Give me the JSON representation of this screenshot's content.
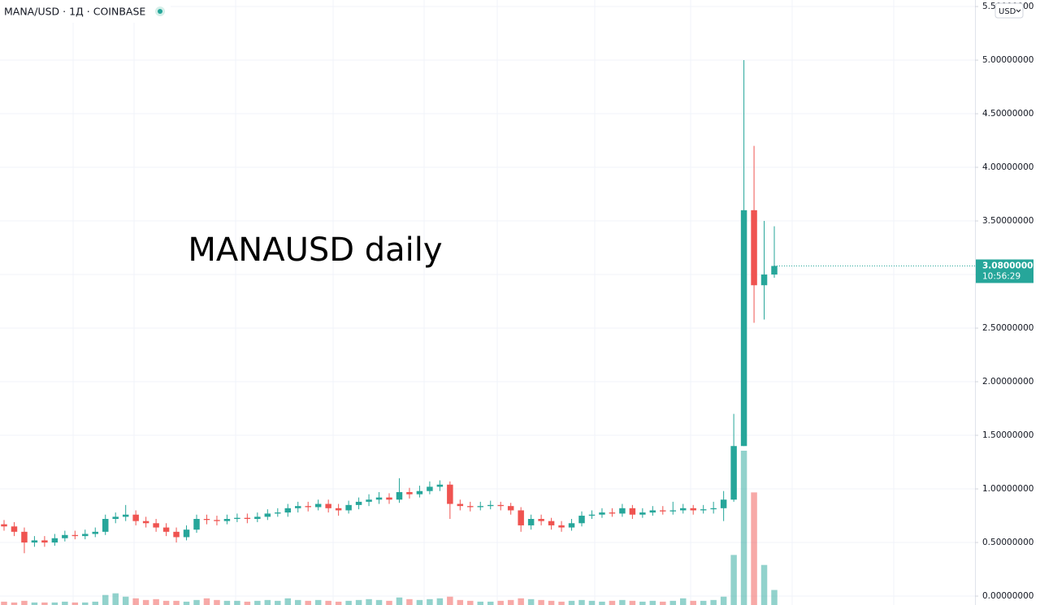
{
  "chart_data": {
    "type": "candlestick",
    "title": "MANA/USD · 1Д · COINBASE",
    "annotation": "MANAUSD daily",
    "currency": "USD",
    "up_color": "#26a69a",
    "down_color": "#ef5350",
    "grid": true,
    "ylim": [
      -0.083,
      5.561
    ],
    "yticks": [
      {
        "value": 0,
        "label": "0.00000000"
      },
      {
        "value": 0.5,
        "label": "0.50000000"
      },
      {
        "value": 1,
        "label": "1.00000000"
      },
      {
        "value": 1.5,
        "label": "1.50000000"
      },
      {
        "value": 2,
        "label": "2.00000000"
      },
      {
        "value": 2.5,
        "label": "2.50000000"
      },
      {
        "value": 3,
        "label": "3.00000000"
      },
      {
        "value": 3.5,
        "label": "3.50000000"
      },
      {
        "value": 4,
        "label": "4.00000000"
      },
      {
        "value": 4.5,
        "label": "4.50000000"
      },
      {
        "value": 5,
        "label": "5.00000000"
      },
      {
        "value": 5.5,
        "label": "5.50000000"
      }
    ],
    "last_price": {
      "value": 3.08,
      "label": "3.08000000"
    },
    "countdown": "10:56:29",
    "open": [
      0.67,
      0.65,
      0.6,
      0.5,
      0.52,
      0.5,
      0.54,
      0.57,
      0.56,
      0.58,
      0.6,
      0.72,
      0.74,
      0.76,
      0.7,
      0.68,
      0.64,
      0.6,
      0.55,
      0.62,
      0.72,
      0.71,
      0.7,
      0.72,
      0.73,
      0.72,
      0.74,
      0.77,
      0.78,
      0.82,
      0.84,
      0.83,
      0.86,
      0.82,
      0.8,
      0.85,
      0.88,
      0.9,
      0.92,
      0.9,
      0.97,
      0.95,
      0.98,
      1.02,
      1.04,
      0.86,
      0.84,
      0.83,
      0.84,
      0.85,
      0.84,
      0.8,
      0.66,
      0.72,
      0.7,
      0.66,
      0.64,
      0.68,
      0.75,
      0.76,
      0.78,
      0.77,
      0.82,
      0.76,
      0.78,
      0.8,
      0.79,
      0.8,
      0.82,
      0.8,
      0.81,
      0.82,
      0.9,
      1.4,
      3.6,
      2.9,
      3.0
    ],
    "high": [
      0.71,
      0.69,
      0.64,
      0.56,
      0.56,
      0.58,
      0.61,
      0.61,
      0.62,
      0.64,
      0.76,
      0.78,
      0.85,
      0.8,
      0.74,
      0.72,
      0.68,
      0.64,
      0.66,
      0.76,
      0.76,
      0.75,
      0.76,
      0.77,
      0.77,
      0.78,
      0.81,
      0.82,
      0.86,
      0.88,
      0.88,
      0.9,
      0.9,
      0.86,
      0.89,
      0.92,
      0.95,
      0.97,
      0.96,
      1.1,
      1.01,
      1.03,
      1.07,
      1.08,
      1.07,
      0.9,
      0.88,
      0.88,
      0.89,
      0.88,
      0.87,
      0.83,
      0.76,
      0.76,
      0.73,
      0.7,
      0.72,
      0.79,
      0.8,
      0.82,
      0.82,
      0.86,
      0.85,
      0.82,
      0.84,
      0.84,
      0.88,
      0.86,
      0.85,
      0.85,
      0.88,
      0.98,
      1.7,
      5.0,
      4.2,
      3.5,
      3.45
    ],
    "low": [
      0.61,
      0.56,
      0.4,
      0.46,
      0.46,
      0.47,
      0.51,
      0.53,
      0.53,
      0.55,
      0.57,
      0.68,
      0.7,
      0.66,
      0.64,
      0.6,
      0.56,
      0.5,
      0.52,
      0.59,
      0.67,
      0.66,
      0.67,
      0.69,
      0.68,
      0.69,
      0.71,
      0.74,
      0.74,
      0.78,
      0.79,
      0.8,
      0.78,
      0.75,
      0.77,
      0.81,
      0.84,
      0.86,
      0.86,
      0.87,
      0.91,
      0.92,
      0.95,
      0.98,
      0.72,
      0.8,
      0.79,
      0.8,
      0.81,
      0.8,
      0.76,
      0.6,
      0.62,
      0.66,
      0.62,
      0.6,
      0.61,
      0.65,
      0.72,
      0.73,
      0.74,
      0.74,
      0.72,
      0.73,
      0.75,
      0.76,
      0.76,
      0.77,
      0.76,
      0.77,
      0.77,
      0.7,
      0.88,
      1.4,
      2.55,
      2.58,
      2.97
    ],
    "close": [
      0.65,
      0.6,
      0.5,
      0.52,
      0.5,
      0.54,
      0.57,
      0.56,
      0.58,
      0.6,
      0.72,
      0.74,
      0.76,
      0.7,
      0.68,
      0.64,
      0.6,
      0.55,
      0.62,
      0.72,
      0.71,
      0.7,
      0.72,
      0.73,
      0.72,
      0.74,
      0.77,
      0.78,
      0.82,
      0.84,
      0.83,
      0.86,
      0.82,
      0.8,
      0.85,
      0.88,
      0.9,
      0.92,
      0.9,
      0.97,
      0.95,
      0.98,
      1.02,
      1.04,
      0.86,
      0.84,
      0.83,
      0.84,
      0.85,
      0.84,
      0.8,
      0.66,
      0.72,
      0.7,
      0.66,
      0.64,
      0.68,
      0.75,
      0.76,
      0.78,
      0.77,
      0.82,
      0.76,
      0.78,
      0.8,
      0.79,
      0.8,
      0.82,
      0.8,
      0.81,
      0.82,
      0.9,
      1.4,
      3.6,
      2.9,
      3.0,
      3.08
    ],
    "volume": [
      4,
      3,
      5,
      3,
      3,
      3,
      4,
      3,
      3,
      4,
      12,
      14,
      10,
      8,
      6,
      7,
      5,
      5,
      4,
      6,
      8,
      6,
      5,
      5,
      4,
      5,
      6,
      5,
      8,
      6,
      5,
      6,
      5,
      4,
      5,
      6,
      7,
      6,
      5,
      9,
      7,
      6,
      7,
      8,
      10,
      6,
      5,
      4,
      4,
      5,
      6,
      8,
      7,
      6,
      5,
      4,
      5,
      6,
      5,
      4,
      5,
      6,
      5,
      4,
      5,
      4,
      5,
      8,
      5,
      5,
      6,
      10,
      60,
      185,
      135,
      48,
      18
    ]
  }
}
